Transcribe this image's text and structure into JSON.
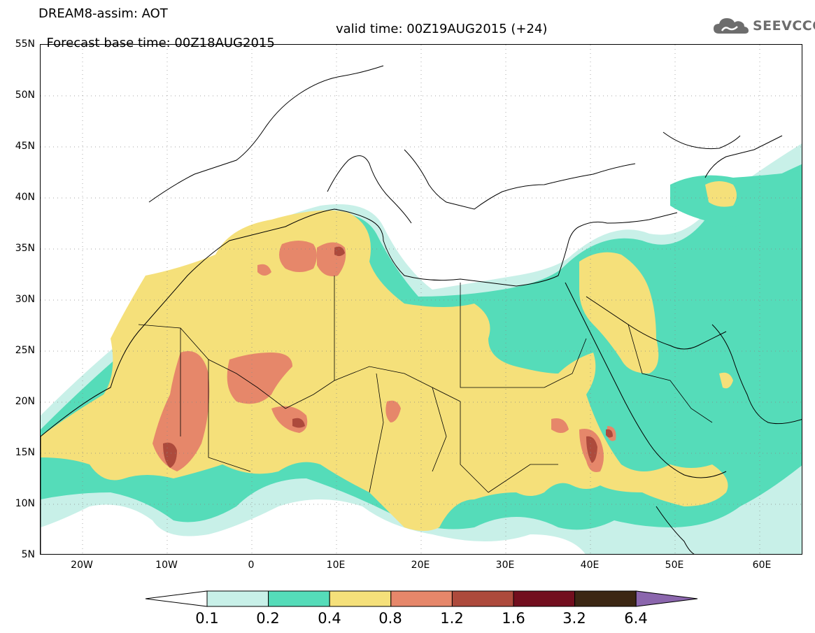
{
  "header": {
    "title_line1": "DREAM8-assim: AOT",
    "base_time": "Forecast base time: 00Z18AUG2015",
    "valid_time": "valid time: 00Z19AUG2015 (+24)"
  },
  "logo": {
    "text": "SEEVCCC",
    "icon": "cloud-icon"
  },
  "map": {
    "lat_labels": [
      "55N",
      "50N",
      "45N",
      "40N",
      "35N",
      "30N",
      "25N",
      "20N",
      "15N",
      "10N",
      "5N"
    ],
    "lon_labels": [
      "20W",
      "10W",
      "0",
      "10E",
      "20E",
      "30E",
      "40E",
      "50E",
      "60E"
    ],
    "extent": {
      "lon": [
        -25,
        65
      ],
      "lat": [
        5,
        55
      ]
    }
  },
  "colorbar": {
    "labels": [
      "0.1",
      "0.2",
      "0.4",
      "0.8",
      "1.2",
      "1.6",
      "3.2",
      "6.4"
    ],
    "colors": [
      "#ffffff",
      "#c8f0e8",
      "#55dcb9",
      "#f5e07a",
      "#e6876a",
      "#ad4a3c",
      "#720e1e",
      "#3c2714",
      "#8b66ad"
    ]
  }
}
